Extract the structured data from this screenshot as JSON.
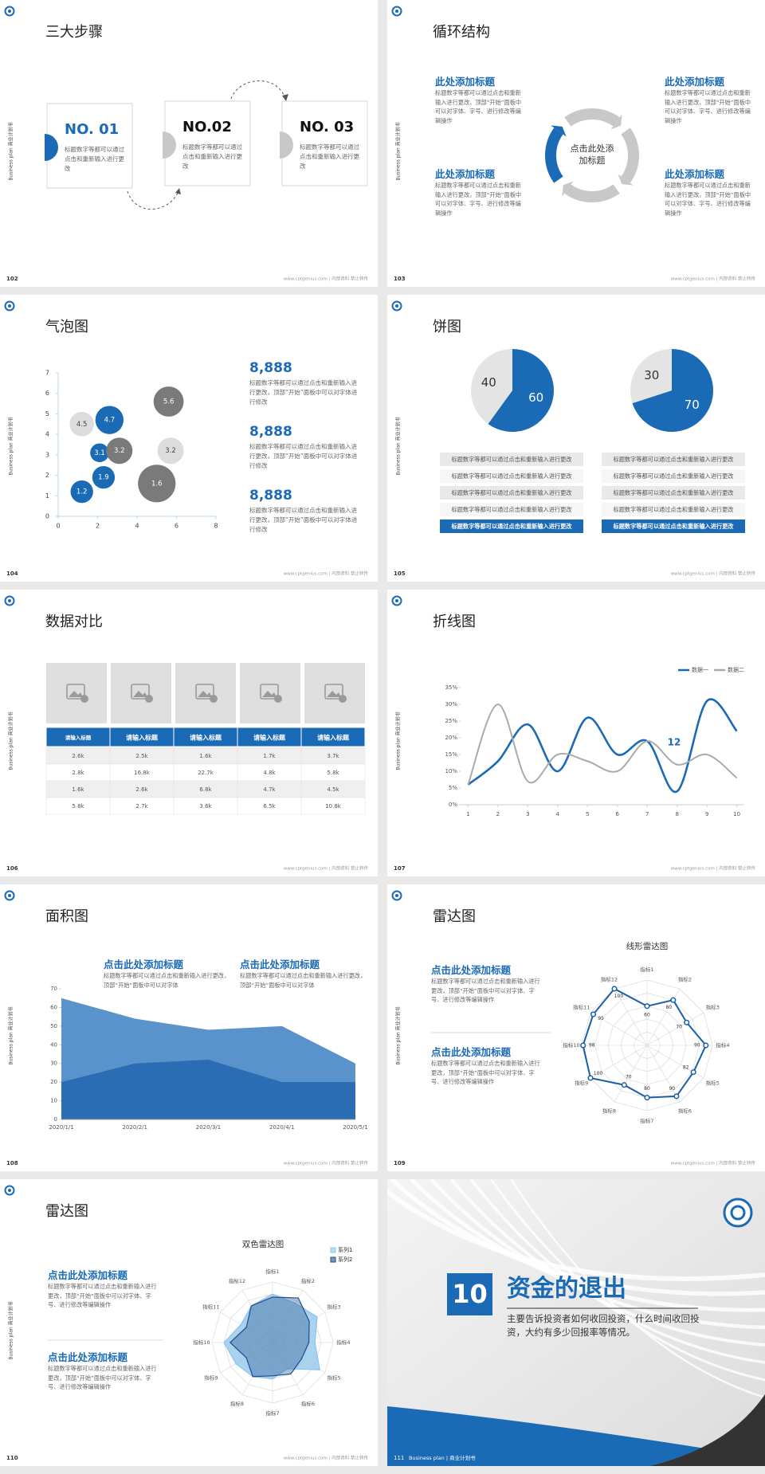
{
  "side_label": "Business plan 商业计划书",
  "footer": "www.cptgenius.com | 内部资料 禁止转传",
  "slides": [
    {
      "number": "102",
      "title": "三大步骤",
      "steps": [
        {
          "label": "NO. 01",
          "text": "标题数字等都可以通过点击和重新输入进行更改"
        },
        {
          "label": "NO.02",
          "text": "标题数字等都可以通过点击和重新输入进行更改"
        },
        {
          "label": "NO. 03",
          "text": "标题数字等都可以通过点击和重新输入进行更改"
        }
      ]
    },
    {
      "number": "103",
      "title": "循环结构",
      "center": "点击此处添加标题",
      "items": [
        {
          "heading": "此处添加标题",
          "text": "标题数字等都可以通过点击和重新输入进行更改，顶部“开始”面板中可以对字体、字号、进行修改等编辑操作"
        },
        {
          "heading": "此处添加标题",
          "text": "标题数字等都可以通过点击和重新输入进行更改，顶部“开始”面板中可以对字体、字号、进行修改等编辑操作"
        },
        {
          "heading": "此处添加标题",
          "text": "标题数字等都可以通过点击和重新输入进行更改，顶部“开始”面板中可以对字体、字号、进行修改等编辑操作"
        },
        {
          "heading": "此处添加标题",
          "text": "标题数字等都可以通过点击和重新输入进行更改，顶部“开始”面板中可以对字体、字号、进行修改等编辑操作"
        }
      ]
    },
    {
      "number": "104",
      "title": "气泡图",
      "chart_data": {
        "type": "bubble",
        "xlim": [
          0,
          8
        ],
        "ylim": [
          0,
          7
        ],
        "xticks": [
          0,
          2,
          4,
          6,
          8
        ],
        "yticks": [
          0,
          1,
          2,
          3,
          4,
          5,
          6,
          7
        ],
        "x": [
          1.2,
          2.6,
          5.6,
          2.1,
          3.1,
          5.7,
          2.3,
          5.0,
          1.2
        ],
        "values": [
          4.5,
          4.7,
          5.6,
          3.1,
          3.2,
          3.2,
          1.9,
          1.6,
          1.2
        ],
        "sizes": [
          1.3,
          1.5,
          1.6,
          1.0,
          1.4,
          1.4,
          1.2,
          2.0,
          1.2
        ],
        "colors": [
          "#dcdcdc",
          "#1a6ab5",
          "#7a7a7a",
          "#1a6ab5",
          "#7a7a7a",
          "#dcdcdc",
          "#1a6ab5",
          "#7a7a7a",
          "#1a6ab5"
        ],
        "axis_color": "#bcd4ea"
      },
      "blocks": [
        {
          "value": "8,888",
          "text": "标题数字等都可以通过点击和重新输入进行更改，顶部“开始”面板中可以对字体进行修改"
        },
        {
          "value": "8,888",
          "text": "标题数字等都可以通过点击和重新输入进行更改，顶部“开始”面板中可以对字体进行修改"
        },
        {
          "value": "8,888",
          "text": "标题数字等都可以通过点击和重新输入进行更改，顶部“开始”面板中可以对字体进行修改"
        }
      ]
    },
    {
      "number": "105",
      "title": "饼图",
      "chart_data": [
        {
          "type": "pie",
          "values": [
            60,
            40
          ],
          "colors": [
            "#1a6ab5",
            "#e4e4e4"
          ]
        },
        {
          "type": "pie",
          "values": [
            70,
            30
          ],
          "colors": [
            "#1a6ab5",
            "#e4e4e4"
          ]
        }
      ],
      "lists": [
        [
          "标题数字等都可以通过点击和重新输入进行更改",
          "标题数字等都可以通过点击和重新输入进行更改",
          "标题数字等都可以通过点击和重新输入进行更改",
          "标题数字等都可以通过点击和重新输入进行更改",
          "标题数字等都可以通过点击和重新输入进行更改"
        ],
        [
          "标题数字等都可以通过点击和重新输入进行更改",
          "标题数字等都可以通过点击和重新输入进行更改",
          "标题数字等都可以通过点击和重新输入进行更改",
          "标题数字等都可以通过点击和重新输入进行更改",
          "标题数字等都可以通过点击和重新输入进行更改"
        ]
      ]
    },
    {
      "number": "106",
      "title": "数据对比",
      "table": {
        "header": [
          "请输入标题",
          "请输入标题",
          "请输入标题",
          "请输入标题",
          "请输入标题"
        ],
        "rows": [
          [
            "2.6k",
            "2.5k",
            "1.6k",
            "1.7k",
            "3.7k"
          ],
          [
            "2.8k",
            "16.8k",
            "22.7k",
            "4.8k",
            "5.8k"
          ],
          [
            "1.6k",
            "2.6k",
            "6.8k",
            "4.7k",
            "4.5k"
          ],
          [
            "5.8k",
            "2.7k",
            "3.6k",
            "6.5k",
            "10.8k"
          ]
        ]
      }
    },
    {
      "number": "107",
      "title": "折线图",
      "chart_data": {
        "type": "line",
        "x": [
          1,
          2,
          3,
          4,
          5,
          6,
          7,
          8,
          9,
          10
        ],
        "xlim": [
          0.75,
          10.25
        ],
        "xticks": [
          1,
          2,
          3,
          4,
          5,
          6,
          7,
          8,
          9,
          10
        ],
        "ylim": [
          0,
          35
        ],
        "yticks": [
          {
            "value": 0,
            "label": "0%"
          },
          {
            "value": 5,
            "label": "5%"
          },
          {
            "value": 10,
            "label": "10%"
          },
          {
            "value": 15,
            "label": "15%"
          },
          {
            "value": 20,
            "label": "20%"
          },
          {
            "value": 25,
            "label": "25%"
          },
          {
            "value": 30,
            "label": "30%"
          },
          {
            "value": 35,
            "label": "35%"
          }
        ],
        "series": [
          {
            "name": "数据一",
            "color": "#1a6ab5",
            "values": [
              6,
              13,
              24,
              10,
              26,
              15,
              19,
              4,
              31,
              22
            ]
          },
          {
            "name": "数据二",
            "color": "#aaaaaa",
            "values": [
              6,
              30,
              7,
              15,
              13,
              10,
              19,
              12,
              15,
              8
            ]
          }
        ],
        "annotation": "12"
      }
    },
    {
      "number": "108",
      "title": "面积图",
      "chart_data": {
        "type": "area",
        "categories": [
          "2020/1/1",
          "2020/2/1",
          "2020/3/1",
          "2020/4/1",
          "2020/5/1"
        ],
        "ylim": [
          0,
          70
        ],
        "yticks": [
          0,
          10,
          20,
          30,
          40,
          50,
          60,
          70
        ],
        "series": [
          {
            "color": "#5a93cc",
            "values": [
              65,
              54,
              48,
              50,
              30
            ]
          },
          {
            "color": "#2a6db3",
            "values": [
              20,
              30,
              32,
              20,
              20
            ]
          }
        ]
      },
      "items": [
        {
          "heading": "点击此处添加标题",
          "text": "标题数字等都可以通过点击和重新输入进行更改，顶部“开始”面板中可以对字体"
        },
        {
          "heading": "点击此处添加标题",
          "text": "标题数字等都可以通过点击和重新输入进行更改，顶部“开始”面板中可以对字体"
        }
      ]
    },
    {
      "number": "109",
      "title": "雷达图",
      "chart_data": {
        "type": "radar",
        "title": "线形雷达图",
        "categories": [
          "指标1",
          "指标2",
          "指标3",
          "指标4",
          "指标5",
          "指标6",
          "指标7",
          "指标8",
          "指标9",
          "指标10",
          "指标11",
          "指标12"
        ],
        "rlim": [
          0,
          100
        ],
        "series": [
          {
            "color": "#1a5fa8",
            "values": [
              60,
              80,
              70,
              90,
              82,
              90,
              80,
              70,
              100,
              98,
              95,
              100
            ]
          }
        ]
      },
      "items": [
        {
          "heading": "点击此处添加标题",
          "text": "标题数字等都可以通过点击和重新输入进行更改，顶部“开始”面板中可以对字体、字号、进行修改等编辑操作"
        },
        {
          "heading": "点击此处添加标题",
          "text": "标题数字等都可以通过点击和重新输入进行更改，顶部“开始”面板中可以对字体、字号、进行修改等编辑操作"
        }
      ]
    },
    {
      "number": "110",
      "title": "雷达图",
      "chart_data": {
        "type": "radar",
        "title": "双色雷达图",
        "categories": [
          "指标1",
          "指标2",
          "指标3",
          "指标4",
          "指标5",
          "指标6",
          "指标7",
          "指标8",
          "指标9",
          "指标10",
          "指标11",
          "指标12"
        ],
        "rlim": [
          0,
          100
        ],
        "series": [
          {
            "name": "系列1",
            "color": "#8cc4ea",
            "values": [
              80,
              75,
              85,
              70,
              90,
              50,
              60,
              65,
              70,
              80,
              60,
              70
            ]
          },
          {
            "name": "系列2",
            "color": "#1f4e8c",
            "values": [
              75,
              85,
              70,
              60,
              55,
              60,
              55,
              65,
              50,
              70,
              50,
              70
            ]
          }
        ]
      },
      "items": [
        {
          "heading": "点击此处添加标题",
          "text": "标题数字等都可以通过点击和重新输入进行更改，顶部“开始”面板中可以对字体、字号、进行修改等编辑操作"
        },
        {
          "heading": "点击此处添加标题",
          "text": "标题数字等都可以通过点击和重新输入进行更改，顶部“开始”面板中可以对字体、字号、进行修改等编辑操作"
        }
      ]
    },
    {
      "number": "111",
      "badge": "10",
      "title": "资金的退出",
      "text": "主要告诉投资者如何收回投资，什么时间收回投资，大约有多少回报率等情况。",
      "caption": "Business plan | 商业计划书"
    }
  ]
}
